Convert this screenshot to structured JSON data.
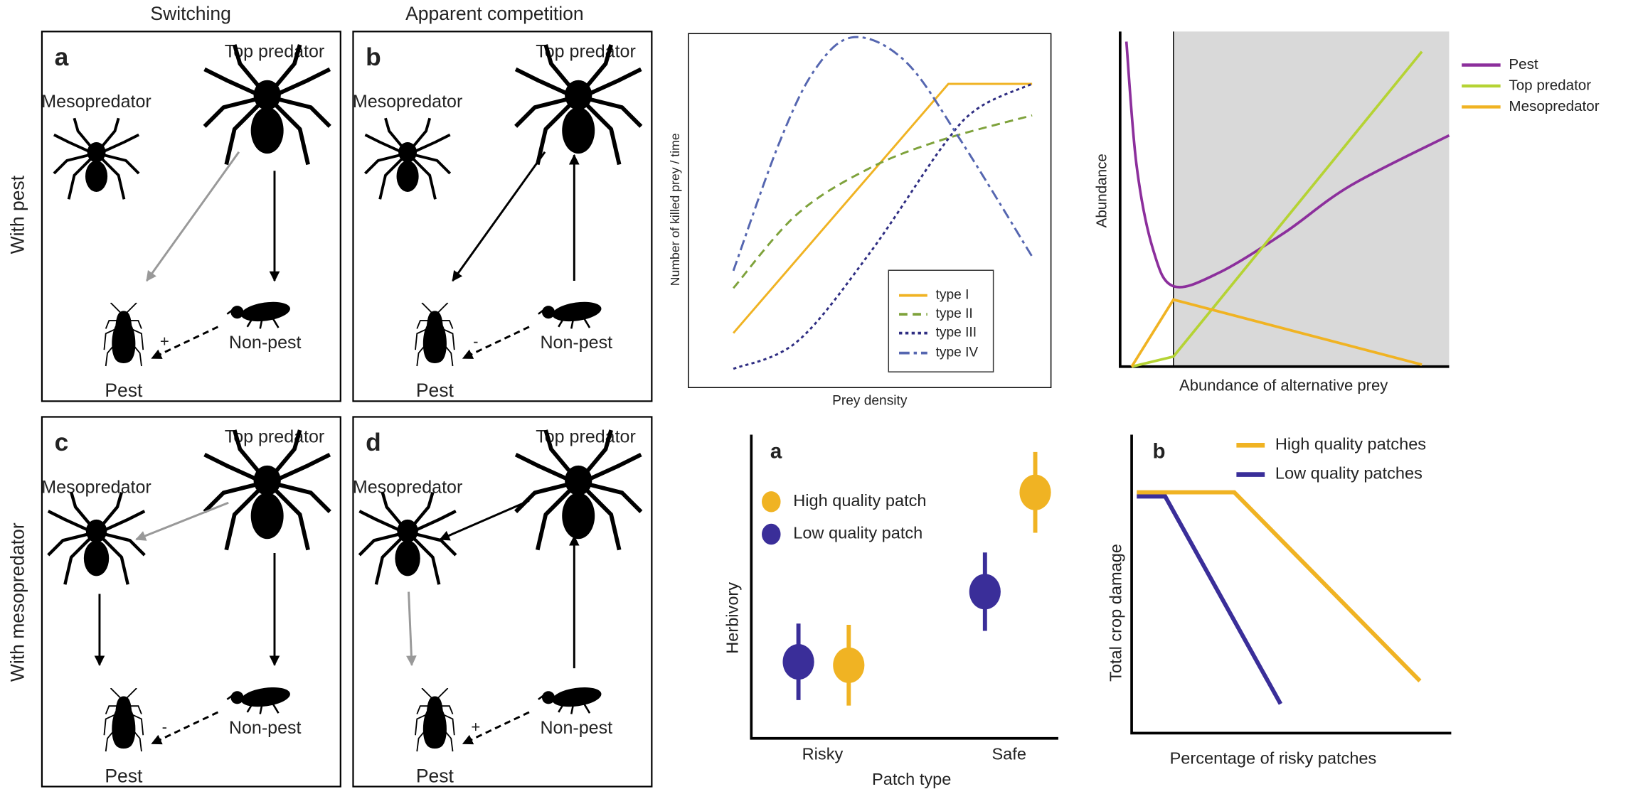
{
  "figure": {
    "column_headers": [
      "Switching",
      "Apparent competition"
    ],
    "row_labels": [
      "With pest",
      "With mesopredator"
    ],
    "panels": [
      {
        "label": "a",
        "top_predator": "Top predator",
        "mesopredator": "Mesopredator",
        "non_pest": "Non-pest",
        "pest": "Pest",
        "effect": "+"
      },
      {
        "label": "b",
        "top_predator": "Top predator",
        "mesopredator": "Mesopredator",
        "non_pest": "Non-pest",
        "pest": "Pest",
        "effect": "-"
      },
      {
        "label": "c",
        "top_predator": "Top predator",
        "mesopredator": "Mesopredator",
        "non_pest": "Non-pest",
        "pest": "Pest",
        "effect": "-"
      },
      {
        "label": "d",
        "top_predator": "Top predator",
        "mesopredator": "Mesopredator",
        "non_pest": "Non-pest",
        "pest": "Pest",
        "effect": "+"
      }
    ]
  },
  "chart_data": [
    {
      "type": "line",
      "ylabel": "Number of killed prey / time",
      "xlabel": "Prey density",
      "xlim": [
        0,
        10
      ],
      "ylim": [
        0,
        10
      ],
      "frame": true,
      "legend": "lower right",
      "series": [
        {
          "name": "type I",
          "color": "#f0b323",
          "style": "solid",
          "x": [
            1.24,
            7.17,
            9.48
          ],
          "values": [
            1.54,
            8.58,
            8.58
          ]
        },
        {
          "name": "type II",
          "color": "#7ea23b",
          "style": "dashed",
          "smooth": true,
          "x": [
            1.24,
            3,
            5,
            7,
            9.48
          ],
          "values": [
            2.81,
            4.9,
            6.2,
            7.0,
            7.69
          ]
        },
        {
          "name": "type III",
          "color": "#2e2d82",
          "style": "dotted",
          "smooth": true,
          "x": [
            1.24,
            3,
            5,
            7,
            8,
            9.48
          ],
          "values": [
            0.53,
            1.3,
            3.8,
            6.8,
            7.9,
            8.58
          ]
        },
        {
          "name": "type IV",
          "color": "#5566b0",
          "style": "dashdot",
          "smooth": true,
          "x": [
            1.24,
            2.5,
            3.5,
            4.57,
            6,
            7.5,
            9.48
          ],
          "values": [
            3.3,
            6.9,
            9.0,
            9.9,
            9.2,
            7.0,
            3.7
          ]
        }
      ]
    },
    {
      "type": "line",
      "ylabel": "Abundance",
      "xlabel": "Abundance of alternative prey",
      "xlim": [
        0,
        10
      ],
      "ylim": [
        0,
        10
      ],
      "shaded_from_x": 1.62,
      "legend": "outside right",
      "series": [
        {
          "name": "Pest",
          "color": "#8c2f9c",
          "style": "solid",
          "smooth": true,
          "x": [
            0.19,
            0.5,
            1.0,
            1.62,
            3,
            5,
            7,
            10
          ],
          "values": [
            9.7,
            6.0,
            3.5,
            2.4,
            2.8,
            4.0,
            5.4,
            6.9
          ]
        },
        {
          "name": "Top predator",
          "color": "#b5d334",
          "style": "solid",
          "x": [
            0.35,
            1.62,
            9.17
          ],
          "values": [
            0,
            0.3,
            9.4
          ]
        },
        {
          "name": "Mesopredator",
          "color": "#f0b323",
          "style": "solid",
          "x": [
            0.35,
            1.62,
            9.17
          ],
          "values": [
            0,
            2.0,
            0.06
          ]
        }
      ]
    },
    {
      "type": "errorbar",
      "label": "a",
      "ylabel": "Herbivory",
      "xlabel": "Patch type",
      "categories": [
        "Risky",
        "Safe"
      ],
      "ylim": [
        0,
        10
      ],
      "legend": "upper left",
      "series": [
        {
          "name": "High quality patch",
          "color": "#f0b323",
          "values": [
            2.41,
            8.1
          ],
          "errors": [
            1.33,
            1.33
          ]
        },
        {
          "name": "Low quality patch",
          "color": "#3a2e99",
          "values": [
            2.52,
            4.83
          ],
          "errors": [
            1.26,
            1.29
          ]
        }
      ]
    },
    {
      "type": "line",
      "label": "b",
      "ylabel": "Total crop damage",
      "xlabel": "Percentage of risky patches",
      "xlim": [
        0,
        10
      ],
      "ylim": [
        0,
        10
      ],
      "legend": "upper right",
      "series": [
        {
          "name": "High quality patches",
          "color": "#f0b323",
          "style": "solid",
          "x": [
            0.16,
            3.21,
            9.02
          ],
          "values": [
            8.07,
            8.07,
            1.75
          ]
        },
        {
          "name": "Low quality patches",
          "color": "#3a2e99",
          "style": "solid",
          "x": [
            0.16,
            1.05,
            4.66
          ],
          "values": [
            7.93,
            7.93,
            0.98
          ]
        }
      ]
    }
  ]
}
